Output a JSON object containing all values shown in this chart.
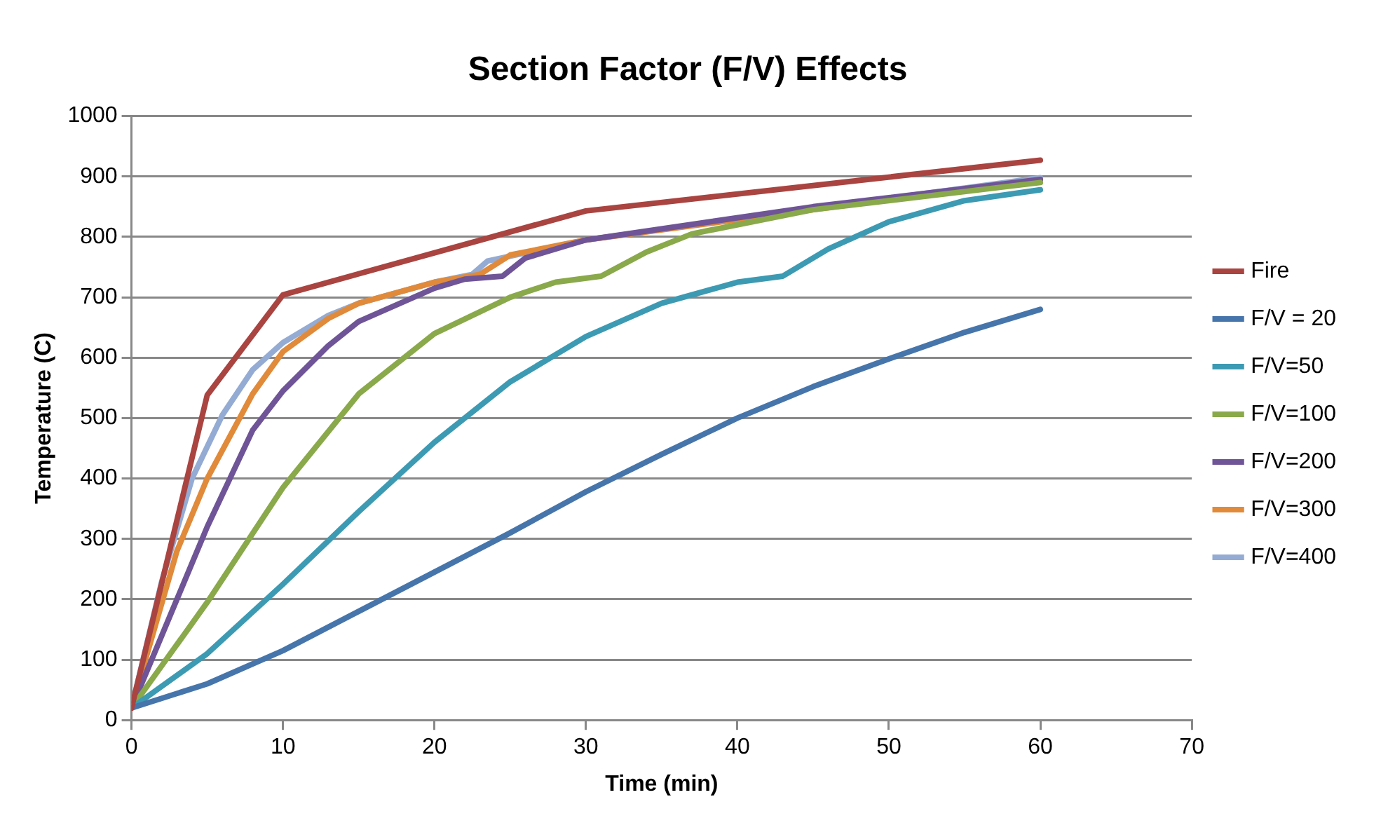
{
  "chart_data": {
    "type": "line",
    "title": "Section Factor (F/V) Effects",
    "xlabel": "Time (min)",
    "ylabel": "Temperature (C)",
    "xlim": [
      0,
      70
    ],
    "xticks": [
      0,
      10,
      20,
      30,
      40,
      50,
      60,
      70
    ],
    "ylim": [
      0,
      1000
    ],
    "yticks": [
      0,
      100,
      200,
      300,
      400,
      500,
      600,
      700,
      800,
      900,
      1000
    ],
    "grid": "y",
    "legend": "right",
    "marker": "none",
    "line_style": "solid",
    "series": [
      {
        "name": "Fire",
        "color": "#a94441",
        "x": [
          0,
          5,
          10,
          30,
          60
        ],
        "values": [
          20,
          538,
          704,
          843,
          927
        ]
      },
      {
        "name": "F/V = 20",
        "color": "#4675ab",
        "x": [
          0,
          5,
          10,
          15,
          20,
          25,
          30,
          35,
          40,
          45,
          50,
          55,
          60
        ],
        "values": [
          20,
          60,
          115,
          180,
          245,
          310,
          378,
          440,
          500,
          552,
          598,
          642,
          680
        ]
      },
      {
        "name": "F/V=50",
        "color": "#3d9ab3",
        "x": [
          0,
          5,
          10,
          15,
          20,
          25,
          30,
          35,
          40,
          43,
          46,
          50,
          55,
          60
        ],
        "values": [
          20,
          110,
          225,
          345,
          460,
          560,
          635,
          690,
          725,
          735,
          780,
          825,
          860,
          878
        ]
      },
      {
        "name": "F/V=100",
        "color": "#89a94a",
        "x": [
          0,
          5,
          10,
          15,
          20,
          25,
          28,
          31,
          34,
          37,
          45,
          60
        ],
        "values": [
          20,
          195,
          385,
          540,
          640,
          700,
          725,
          735,
          775,
          805,
          845,
          890
        ]
      },
      {
        "name": "F/V=200",
        "color": "#6f5497",
        "x": [
          0,
          3,
          5,
          8,
          10,
          13,
          15,
          20,
          22,
          24.5,
          26,
          30,
          45,
          60
        ],
        "values": [
          20,
          200,
          320,
          480,
          545,
          620,
          660,
          715,
          730,
          735,
          765,
          795,
          850,
          895
        ]
      },
      {
        "name": "F/V=300",
        "color": "#e08a3a",
        "x": [
          0,
          3,
          5,
          8,
          10,
          13,
          15,
          20,
          23,
          25,
          30,
          60
        ],
        "values": [
          20,
          280,
          400,
          540,
          610,
          665,
          690,
          725,
          738,
          770,
          795,
          895
        ]
      },
      {
        "name": "F/V=400",
        "color": "#94abd3",
        "x": [
          0,
          2,
          4,
          6,
          8,
          10,
          13,
          15,
          20,
          22.5,
          23.5,
          30,
          60
        ],
        "values": [
          20,
          230,
          400,
          505,
          580,
          625,
          670,
          690,
          725,
          738,
          760,
          795,
          898
        ]
      }
    ]
  }
}
